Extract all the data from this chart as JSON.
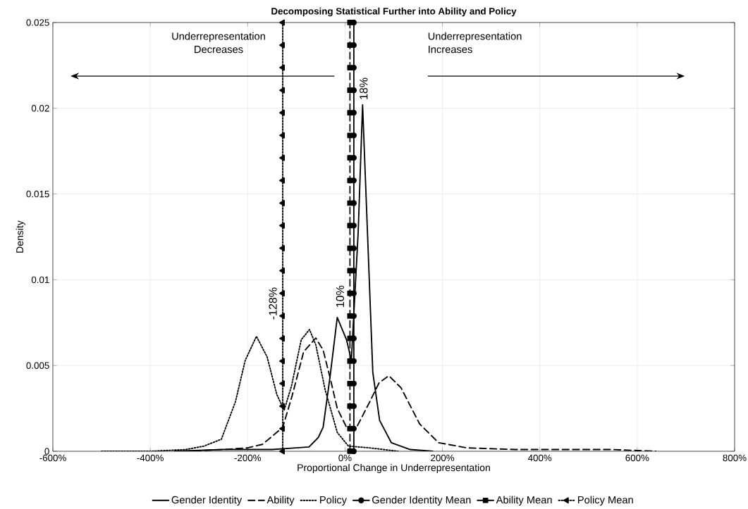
{
  "chart_data": {
    "type": "line",
    "title": "Decomposing Statistical Further into Ability and Policy",
    "xlabel": "Proportional Change in Underrepresentation",
    "ylabel": "Density",
    "xlim": [
      -600,
      800
    ],
    "ylim": [
      0,
      0.025
    ],
    "xticks": [
      {
        "value": -600,
        "label": "-600%"
      },
      {
        "value": -400,
        "label": "-400%"
      },
      {
        "value": -200,
        "label": "-200%"
      },
      {
        "value": 0,
        "label": "0%"
      },
      {
        "value": 200,
        "label": "200%"
      },
      {
        "value": 400,
        "label": "400%"
      },
      {
        "value": 600,
        "label": "600%"
      },
      {
        "value": 800,
        "label": "800%"
      }
    ],
    "yticks": [
      0,
      0.005,
      0.01,
      0.015,
      0.02,
      0.025
    ],
    "grid": true,
    "legend": "bottom",
    "series": [
      {
        "name": "Gender Identity",
        "color": "#000000",
        "line_style": "solid",
        "marker": "none",
        "x": [
          -350,
          -250,
          -150,
          -100,
          -74,
          -55,
          -45,
          -31,
          -16,
          3,
          13,
          27,
          36,
          46,
          57,
          71,
          95,
          134,
          180
        ],
        "values": [
          0,
          0.0001,
          0.0001,
          0.0002,
          0.00025,
          0.0008,
          0.0014,
          0.0043,
          0.0078,
          0.0065,
          0.0053,
          0.0128,
          0.0202,
          0.0128,
          0.0046,
          0.0018,
          0.0005,
          0.0001,
          0
        ]
      },
      {
        "name": "Ability",
        "color": "#000000",
        "line_style": "dashed",
        "marker": "none",
        "x": [
          -330,
          -250,
          -200,
          -170,
          -157,
          -128,
          -109,
          -85,
          -60,
          -45,
          -30,
          -16,
          3,
          22,
          51,
          70,
          90,
          115,
          153,
          192,
          250,
          350,
          450,
          550,
          638
        ],
        "values": [
          0,
          0.0001,
          0.0002,
          0.0004,
          0.0007,
          0.0014,
          0.0032,
          0.0058,
          0.0066,
          0.0059,
          0.0042,
          0.0025,
          0.0014,
          0.0013,
          0.0029,
          0.004,
          0.0044,
          0.0037,
          0.0016,
          0.0005,
          0.0002,
          0.0001,
          0.0001,
          0.0001,
          0
        ]
      },
      {
        "name": "Policy",
        "color": "#000000",
        "line_style": "dotted",
        "marker": "none",
        "x": [
          -500,
          -400,
          -327,
          -290,
          -254,
          -225,
          -205,
          -182,
          -160,
          -140,
          -125,
          -110,
          -90,
          -73,
          -60,
          -41,
          -16,
          7,
          50,
          109
        ],
        "values": [
          0,
          0,
          0.0001,
          0.0003,
          0.0007,
          0.0029,
          0.0053,
          0.0067,
          0.0055,
          0.0033,
          0.0024,
          0.0038,
          0.0065,
          0.0071,
          0.0062,
          0.0036,
          0.0011,
          0.0003,
          0.0002,
          0
        ]
      },
      {
        "name": "Gender Identity Mean",
        "color": "#000000",
        "line_style": "solid",
        "marker": "circle",
        "x": [
          18,
          18,
          18,
          18,
          18,
          18,
          18,
          18,
          18,
          18,
          18,
          18,
          18,
          18,
          18,
          18,
          18,
          18,
          18,
          18
        ],
        "values": [
          0,
          0.00132,
          0.00263,
          0.00395,
          0.00526,
          0.00658,
          0.00789,
          0.00921,
          0.01053,
          0.01184,
          0.01316,
          0.01447,
          0.01579,
          0.01711,
          0.01842,
          0.01974,
          0.02105,
          0.02237,
          0.02368,
          0.025
        ]
      },
      {
        "name": "Ability Mean",
        "color": "#000000",
        "line_style": "dashed",
        "marker": "square",
        "x": [
          10,
          10,
          10,
          10,
          10,
          10,
          10,
          10,
          10,
          10,
          10,
          10,
          10,
          10,
          10,
          10,
          10,
          10,
          10,
          10
        ],
        "values": [
          0,
          0.00132,
          0.00263,
          0.00395,
          0.00526,
          0.00658,
          0.00789,
          0.00921,
          0.01053,
          0.01184,
          0.01316,
          0.01447,
          0.01579,
          0.01711,
          0.01842,
          0.01974,
          0.02105,
          0.02237,
          0.02368,
          0.025
        ]
      },
      {
        "name": "Policy Mean",
        "color": "#000000",
        "line_style": "dotted",
        "marker": "triangle",
        "x": [
          -128,
          -128,
          -128,
          -128,
          -128,
          -128,
          -128,
          -128,
          -128,
          -128,
          -128,
          -128,
          -128,
          -128,
          -128,
          -128,
          -128,
          -128,
          -128,
          -128
        ],
        "values": [
          0,
          0.00132,
          0.00263,
          0.00395,
          0.00526,
          0.00658,
          0.00789,
          0.00921,
          0.01053,
          0.01184,
          0.01316,
          0.01447,
          0.01579,
          0.01711,
          0.01842,
          0.01974,
          0.02105,
          0.02237,
          0.02368,
          0.025
        ]
      }
    ],
    "annotations": [
      {
        "text": "18%",
        "x": 18,
        "y": 0.0202
      },
      {
        "text": "10%",
        "x": 10,
        "y": 0.0083
      },
      {
        "text": "-128%",
        "x": -128,
        "y": 0.0076
      },
      "Underrepresentation Decreases",
      "Underrepresentation Increases"
    ]
  }
}
